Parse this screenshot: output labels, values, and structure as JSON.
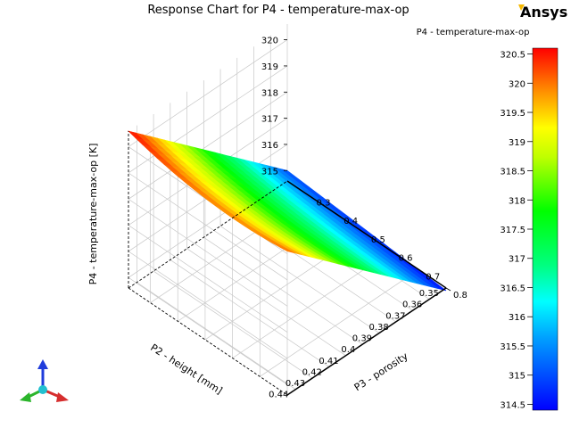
{
  "brand": {
    "logo_text": "Ansys",
    "accent": "#f5b800"
  },
  "chart_data": {
    "type": "surface",
    "title": "Response Chart for P4 - temperature-max-op",
    "xlabel": "P2 - height  [mm]",
    "ylabel": "P3 - porosity",
    "zlabel": "P4 - temperature-max-op  [K]",
    "x_range": [
      0.35,
      0.445
    ],
    "y_range": [
      0.22,
      0.8
    ],
    "z_range": [
      314.5,
      320.6
    ],
    "x_ticks": [
      "0.35",
      "0.36",
      "0.37",
      "0.38",
      "0.39",
      "0.4",
      "0.41",
      "0.42",
      "0.43",
      "0.44"
    ],
    "y_ticks": [
      "0.3",
      "0.4",
      "0.5",
      "0.6",
      "0.7",
      "0.8"
    ],
    "z_ticks": [
      "315",
      "316",
      "317",
      "318",
      "319",
      "320"
    ],
    "corner_values": {
      "x_low_y_low": 315.0,
      "x_high_y_low": 320.6,
      "x_low_y_high": 314.5,
      "x_high_y_high": 320.1
    },
    "legend": {
      "title": "P4 - temperature-max-op",
      "placement": "right",
      "ticks": [
        "320.5",
        "320",
        "319.5",
        "319",
        "318.5",
        "318",
        "317.5",
        "317",
        "316.5",
        "316",
        "315.5",
        "315",
        "314.5"
      ],
      "min": 314.4,
      "max": 320.6
    },
    "grid": true
  },
  "triad": {
    "colors": [
      "#1f3cdb",
      "#d62e2e",
      "#2bb52b",
      "#22c0d0"
    ]
  }
}
